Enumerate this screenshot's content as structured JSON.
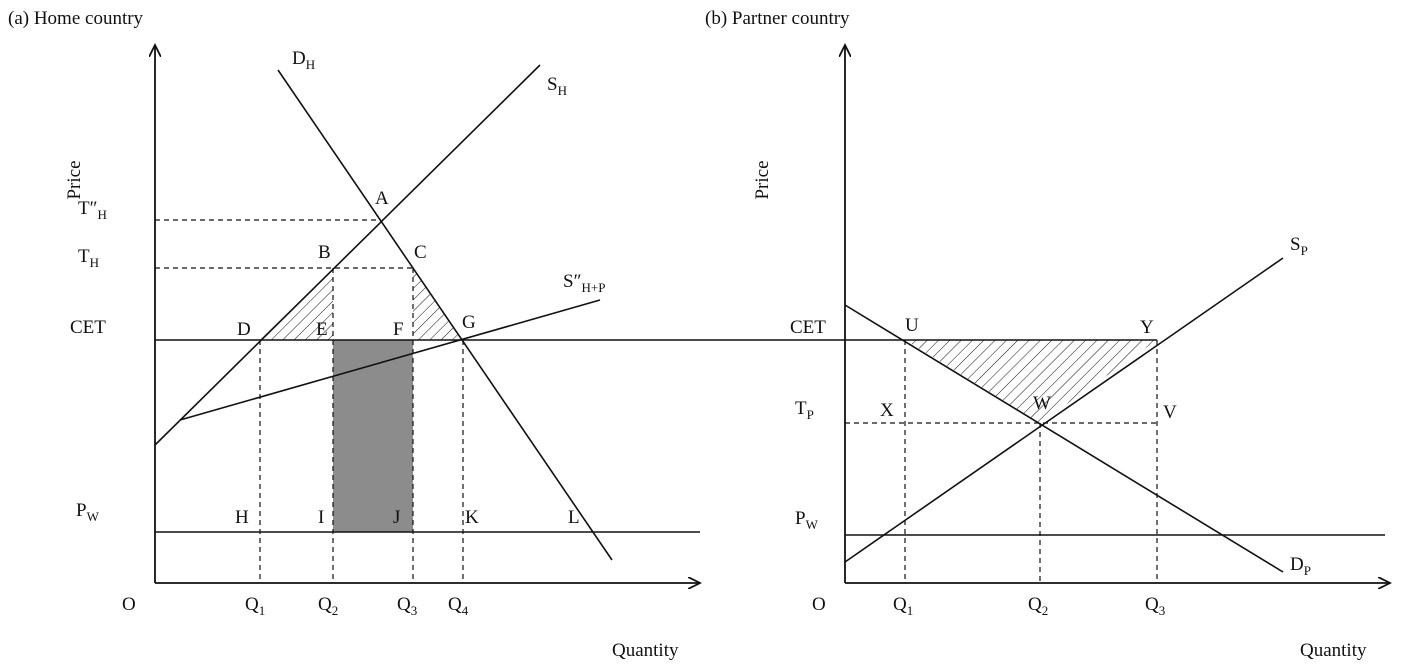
{
  "panels": [
    {
      "title": "(a) Home country",
      "y_label": "Price",
      "x_label": "Quantity",
      "origin": "O",
      "price_labels": [
        {
          "text": "T″",
          "sub": "H"
        },
        {
          "text": "T",
          "sub": "H"
        },
        "CET",
        {
          "text": "P",
          "sub": "W"
        }
      ],
      "quantity_labels": [
        {
          "text": "Q",
          "sub": "1"
        },
        {
          "text": "Q",
          "sub": "2"
        },
        {
          "text": "Q",
          "sub": "3"
        },
        {
          "text": "Q",
          "sub": "4"
        }
      ],
      "curve_labels": [
        {
          "text": "D",
          "sub": "H"
        },
        {
          "text": "S",
          "sub": "H"
        },
        {
          "text": "S″",
          "sub": "H+P"
        }
      ],
      "point_labels": [
        "A",
        "B",
        "C",
        "D",
        "E",
        "F",
        "G",
        "H",
        "I",
        "J",
        "K",
        "L"
      ]
    },
    {
      "title": "(b) Partner country",
      "y_label": "Price",
      "x_label": "Quantity",
      "origin": "O",
      "price_labels": [
        "CET",
        {
          "text": "T",
          "sub": "P"
        },
        {
          "text": "P",
          "sub": "W"
        }
      ],
      "quantity_labels": [
        {
          "text": "Q",
          "sub": "1"
        },
        {
          "text": "Q",
          "sub": "2"
        },
        {
          "text": "Q",
          "sub": "3"
        }
      ],
      "curve_labels": [
        {
          "text": "S",
          "sub": "P"
        },
        {
          "text": "D",
          "sub": "P"
        }
      ],
      "point_labels": [
        "U",
        "Y",
        "X",
        "W",
        "V"
      ]
    }
  ]
}
